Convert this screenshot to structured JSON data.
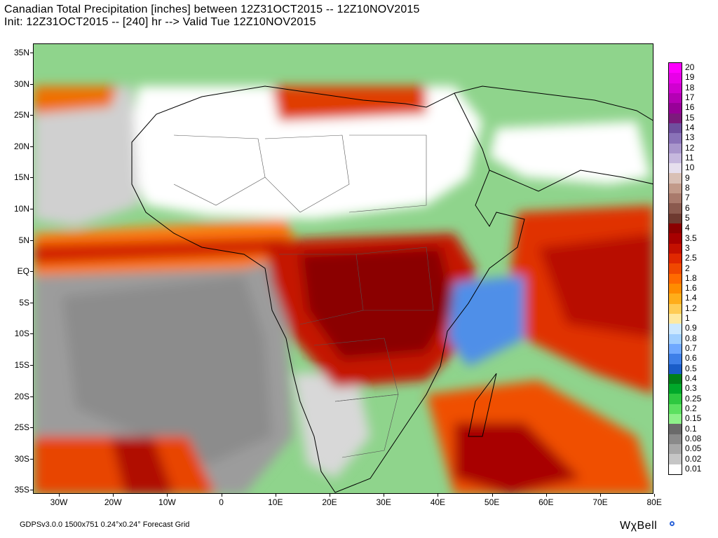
{
  "title_line1": "Canadian Total Precipitation [inches] between 12Z31OCT2015 -- 12Z10NOV2015",
  "title_line2": "Init: 12Z31OCT2015 -- [240] hr --> Valid Tue 12Z10NOV2015",
  "lat_labels": [
    "35N",
    "30N",
    "25N",
    "20N",
    "15N",
    "10N",
    "5N",
    "EQ",
    "5S",
    "10S",
    "15S",
    "20S",
    "25S",
    "30S",
    "35S"
  ],
  "lon_labels": [
    "30W",
    "20W",
    "10W",
    "0",
    "10E",
    "20E",
    "30E",
    "40E",
    "50E",
    "60E",
    "70E",
    "80E"
  ],
  "legend": [
    {
      "label": "20",
      "color": "#ff00ff"
    },
    {
      "label": "19",
      "color": "#e800e8"
    },
    {
      "label": "18",
      "color": "#d000d0"
    },
    {
      "label": "17",
      "color": "#b400b4"
    },
    {
      "label": "16",
      "color": "#980098"
    },
    {
      "label": "15",
      "color": "#7c1a7c"
    },
    {
      "label": "14",
      "color": "#6f4f9e"
    },
    {
      "label": "13",
      "color": "#8a72b8"
    },
    {
      "label": "12",
      "color": "#a996cc"
    },
    {
      "label": "11",
      "color": "#c6b8de"
    },
    {
      "label": "10",
      "color": "#e6dfee"
    },
    {
      "label": "9",
      "color": "#d9c0b6"
    },
    {
      "label": "8",
      "color": "#c29a8a"
    },
    {
      "label": "7",
      "color": "#a97a6c"
    },
    {
      "label": "6",
      "color": "#8b5a4e"
    },
    {
      "label": "5",
      "color": "#6e3a30"
    },
    {
      "label": "4",
      "color": "#8b0000"
    },
    {
      "label": "3.5",
      "color": "#a80000"
    },
    {
      "label": "3",
      "color": "#c41000"
    },
    {
      "label": "2.5",
      "color": "#e02800"
    },
    {
      "label": "2",
      "color": "#f04800"
    },
    {
      "label": "1.8",
      "color": "#ff6a00"
    },
    {
      "label": "1.6",
      "color": "#ff8c00"
    },
    {
      "label": "1.4",
      "color": "#ffad1a"
    },
    {
      "label": "1.2",
      "color": "#ffcc55"
    },
    {
      "label": "1",
      "color": "#ffe9a0"
    },
    {
      "label": "0.9",
      "color": "#cce8ff"
    },
    {
      "label": "0.8",
      "color": "#a0cfff"
    },
    {
      "label": "0.7",
      "color": "#6fa8ff"
    },
    {
      "label": "0.6",
      "color": "#3e7fe8"
    },
    {
      "label": "0.5",
      "color": "#1a5cc8"
    },
    {
      "label": "0.4",
      "color": "#00801a"
    },
    {
      "label": "0.3",
      "color": "#00a82a"
    },
    {
      "label": "0.25",
      "color": "#2ec840"
    },
    {
      "label": "0.2",
      "color": "#5ce060"
    },
    {
      "label": "0.15",
      "color": "#8ef08a"
    },
    {
      "label": "0.1",
      "color": "#6a6a6a"
    },
    {
      "label": "0.08",
      "color": "#8a8a8a"
    },
    {
      "label": "0.05",
      "color": "#a8a8a8"
    },
    {
      "label": "0.02",
      "color": "#c6c6c6"
    },
    {
      "label": "0.01",
      "color": "#ffffff"
    }
  ],
  "footer": "GDPSv3.0.0 1500x751 0.24°x0.24° Forecast Grid",
  "brand": "WχBell"
}
